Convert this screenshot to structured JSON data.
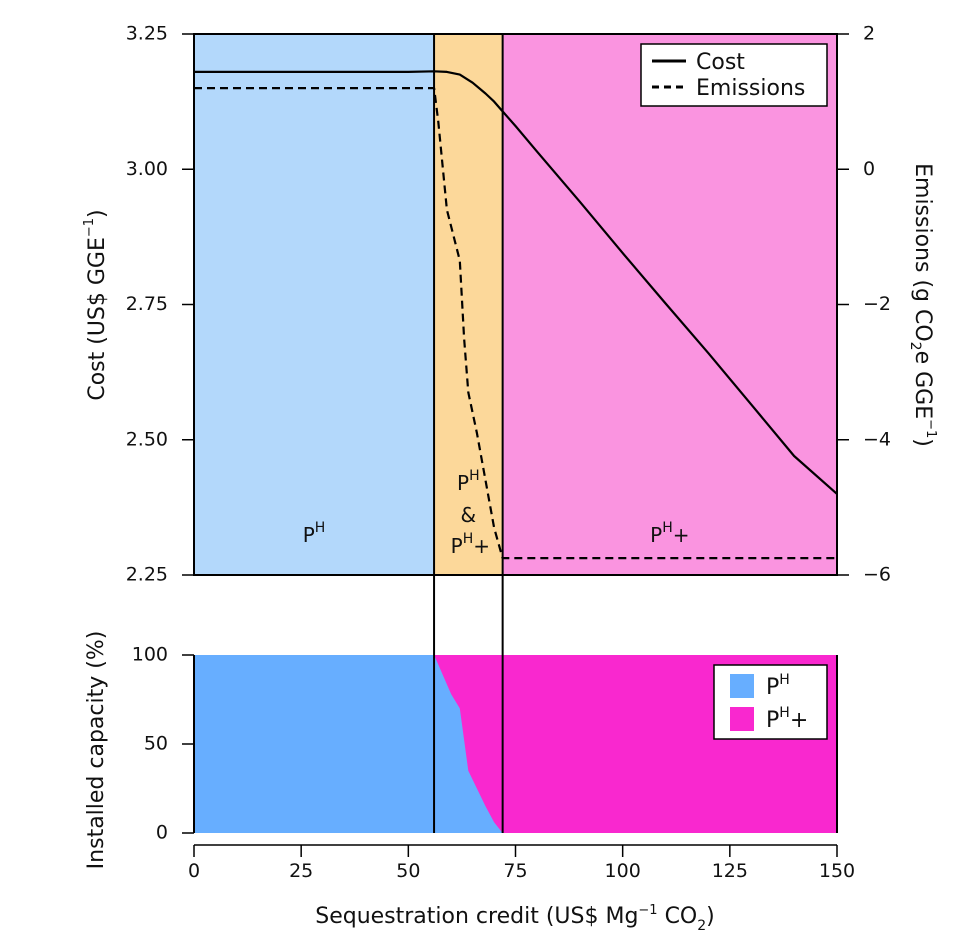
{
  "chart_data": [
    {
      "type": "line",
      "panel": "top",
      "xlabel": "Sequestration credit (US$ Mg⁻¹ CO₂)",
      "ylabel": "Cost (US$ GGE⁻¹)",
      "y2label": "Emissions (g CO₂e GGE⁻¹)",
      "xlim": [
        0,
        150
      ],
      "ylim": [
        2.25,
        3.25
      ],
      "y2lim": [
        -6,
        2
      ],
      "x_ticks": [
        "0",
        "25",
        "50",
        "75",
        "100",
        "125",
        "150"
      ],
      "y_ticks": [
        "2.25",
        "2.50",
        "2.75",
        "3.00",
        "3.25"
      ],
      "y2_ticks": [
        "−6",
        "−4",
        "−2",
        "0",
        "2"
      ],
      "grid": false,
      "legend_position": "top-right",
      "regions": [
        {
          "label": "Pᴴ",
          "x_from": 0,
          "x_to": 56,
          "color": "#b3d8fb"
        },
        {
          "label": "Pᴴ & Pᴴ+",
          "x_from": 56,
          "x_to": 72,
          "color": "#fcd89a"
        },
        {
          "label": "Pᴴ+",
          "x_from": 72,
          "x_to": 150,
          "color": "#fa94e0"
        }
      ],
      "series": [
        {
          "name": "Cost",
          "axis": "left",
          "style": "solid",
          "points": [
            [
              0,
              3.18
            ],
            [
              10,
              3.18
            ],
            [
              20,
              3.18
            ],
            [
              30,
              3.18
            ],
            [
              40,
              3.18
            ],
            [
              50,
              3.18
            ],
            [
              56,
              3.181
            ],
            [
              59,
              3.18
            ],
            [
              62,
              3.175
            ],
            [
              65,
              3.16
            ],
            [
              68,
              3.14
            ],
            [
              70,
              3.125
            ],
            [
              72,
              3.107
            ],
            [
              75,
              3.08
            ],
            [
              80,
              3.033
            ],
            [
              90,
              2.94
            ],
            [
              100,
              2.845
            ],
            [
              110,
              2.752
            ],
            [
              120,
              2.66
            ],
            [
              130,
              2.565
            ],
            [
              140,
              2.47
            ],
            [
              150,
              2.4
            ]
          ]
        },
        {
          "name": "Emissions",
          "axis": "right",
          "style": "dashed",
          "points": [
            [
              0,
              1.2
            ],
            [
              56,
              1.2
            ],
            [
              57,
              0.7
            ],
            [
              59,
              -0.6
            ],
            [
              62,
              -1.35
            ],
            [
              63,
              -2.5
            ],
            [
              64,
              -3.3
            ],
            [
              66,
              -3.9
            ],
            [
              68,
              -4.6
            ],
            [
              70,
              -5.3
            ],
            [
              72,
              -5.75
            ],
            [
              150,
              -5.75
            ]
          ]
        }
      ]
    },
    {
      "type": "area",
      "panel": "bottom",
      "ylabel": "Installed capacity (%)",
      "xlim": [
        0,
        150
      ],
      "ylim": [
        0,
        100
      ],
      "x_ticks": [
        "0",
        "25",
        "50",
        "75",
        "100",
        "125",
        "150"
      ],
      "y_ticks": [
        "0",
        "50",
        "100"
      ],
      "grid": false,
      "legend_position": "top-right",
      "x": [
        0,
        56,
        60,
        62,
        64,
        66,
        68,
        70,
        72,
        150
      ],
      "series": [
        {
          "name": "Pᴴ",
          "color": "#67aeff",
          "values": [
            100,
            100,
            78,
            70,
            35,
            25,
            15,
            6,
            0,
            0
          ]
        },
        {
          "name": "Pᴴ+",
          "color": "#f928cf",
          "values": [
            0,
            0,
            22,
            30,
            65,
            75,
            85,
            94,
            100,
            100
          ]
        }
      ]
    }
  ]
}
